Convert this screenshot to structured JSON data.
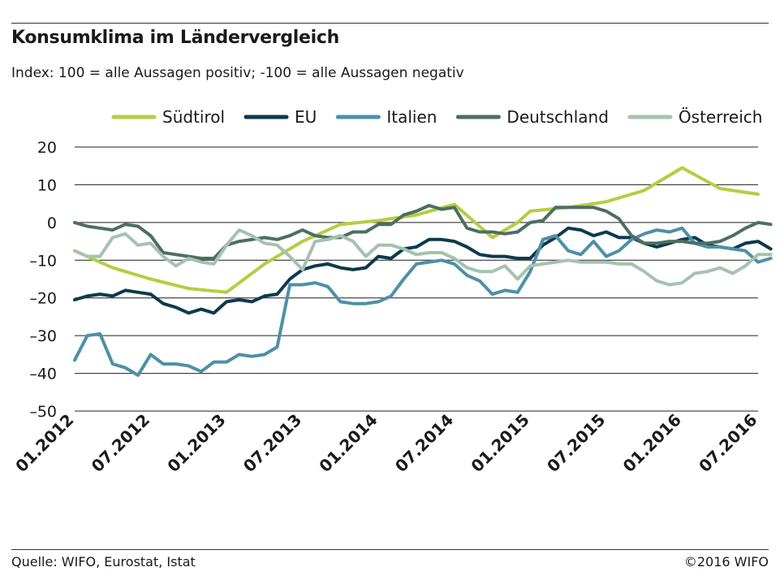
{
  "header": {
    "title": "Konsumklima im Ländervergleich",
    "subtitle": "Index: 100 = alle Aussagen positiv; -100 =  alle Aussagen negativ"
  },
  "footer": {
    "source": "Quelle: WIFO, Eurostat, Istat",
    "copyright": "©2016 WIFO"
  },
  "chart_data": {
    "type": "line",
    "title": "Konsumklima im Ländervergleich",
    "subtitle": "Index: 100 = alle Aussagen positiv; -100 =  alle Aussagen negativ",
    "xlabel": "",
    "ylabel": "",
    "ylim": [
      -50,
      20
    ],
    "yticks": [
      20,
      10,
      0,
      -10,
      -20,
      -30,
      -40,
      -50
    ],
    "ytick_labels": [
      "20",
      "10",
      "0",
      "–10",
      "–20",
      "–30",
      "–40",
      "–50"
    ],
    "xticks": [
      {
        "label": "01.2012",
        "index": 0
      },
      {
        "label": "07.2012",
        "index": 6
      },
      {
        "label": "01.2013",
        "index": 12
      },
      {
        "label": "07.2013",
        "index": 18
      },
      {
        "label": "01.2014",
        "index": 24
      },
      {
        "label": "07.2014",
        "index": 30
      },
      {
        "label": "01.2015",
        "index": 36
      },
      {
        "label": "07.2015",
        "index": 42
      },
      {
        "label": "01.2016",
        "index": 48
      },
      {
        "label": "07.2016",
        "index": 54
      }
    ],
    "x_start": "01.2012",
    "x_end": "07.2016",
    "grid": "horizontal",
    "legend": "top",
    "series": [
      {
        "name": "Südtirol",
        "color": "#b5cd42",
        "x": [
          0,
          3,
          6,
          9,
          12,
          15,
          18,
          21,
          24,
          27,
          30,
          33,
          35,
          36,
          39,
          42,
          45,
          48,
          51,
          54
        ],
        "values": [
          -7.5,
          -12,
          -15,
          -17.5,
          -18.5,
          -11,
          -5,
          -0.5,
          0.5,
          2,
          4.8,
          -4,
          0,
          3,
          4,
          5.5,
          8.5,
          14.5,
          9,
          7.5
        ]
      },
      {
        "name": "EU",
        "color": "#0c3a4c",
        "values": [
          -20.5,
          -19.5,
          -19,
          -19.5,
          -18,
          -18.5,
          -19,
          -21.5,
          -22.5,
          -24,
          -23,
          -24,
          -21,
          -20.5,
          -21,
          -19.5,
          -19,
          -15,
          -12.5,
          -11.5,
          -11,
          -12,
          -12.5,
          -12,
          -9,
          -9.5,
          -7,
          -6.5,
          -4.5,
          -4.5,
          -5,
          -6.5,
          -8.5,
          -9,
          -9,
          -9.5,
          -9.5,
          -6,
          -4,
          -1.5,
          -2,
          -3.5,
          -2.5,
          -4,
          -4,
          -5.5,
          -6.5,
          -5.5,
          -4.5,
          -4,
          -6,
          -6.5,
          -7,
          -5.5,
          -5,
          -7
        ]
      },
      {
        "name": "Italien",
        "color": "#4f8fa8",
        "values": [
          -36.5,
          -30,
          -29.5,
          -37.5,
          -38.5,
          -40.5,
          -35,
          -37.5,
          -37.5,
          -38,
          -39.5,
          -37,
          -37,
          -35,
          -35.5,
          -35,
          -33,
          -16.5,
          -16.5,
          -16,
          -17,
          -21,
          -21.5,
          -21.5,
          -21,
          -19.5,
          -15,
          -11,
          -10.5,
          -10,
          -11,
          -14,
          -15.5,
          -19,
          -18,
          -18.5,
          -13,
          -4.5,
          -3.5,
          -7.5,
          -8.5,
          -5,
          -9,
          -7.5,
          -4.5,
          -3,
          -2,
          -2.5,
          -1.5,
          -5.5,
          -6.5,
          -6.5,
          -7,
          -7.5,
          -10.5,
          -9.5
        ]
      },
      {
        "name": "Deutschland",
        "color": "#4d6e62",
        "values": [
          0,
          -1,
          -1.5,
          -2,
          -0.5,
          -1,
          -3.5,
          -8,
          -8.5,
          -9,
          -9.5,
          -9.5,
          -6,
          -5,
          -4.5,
          -4,
          -4.5,
          -3.5,
          -2,
          -3.5,
          -4,
          -4,
          -2.5,
          -2.5,
          -0.5,
          -0.5,
          2,
          3,
          4.5,
          3.5,
          4,
          -1.5,
          -2.5,
          -2.5,
          -3,
          -2.5,
          0,
          0.5,
          4,
          4,
          4,
          4,
          3,
          1,
          -3.5,
          -5.5,
          -5.5,
          -5,
          -5,
          -5.5,
          -5.5,
          -5,
          -3.5,
          -1.5,
          0,
          -0.5
        ]
      },
      {
        "name": "Österreich",
        "color": "#a5c2ae",
        "values": [
          -7.5,
          -9,
          -9,
          -4,
          -3,
          -6,
          -5.5,
          -9,
          -11.5,
          -9.5,
          -10.5,
          -11,
          -6,
          -2,
          -3.5,
          -5.5,
          -6,
          -9,
          -12.5,
          -5,
          -4.5,
          -3.5,
          -5,
          -9,
          -6,
          -6,
          -7,
          -8.5,
          -8,
          -8,
          -9.5,
          -12,
          -13,
          -13,
          -11.5,
          -15,
          -11.5,
          -11,
          -10.5,
          -10,
          -10.5,
          -10.5,
          -10.5,
          -11,
          -11,
          -13,
          -15.5,
          -16.5,
          -16,
          -13.5,
          -13,
          -12,
          -13.5,
          -11.5,
          -8.5,
          -8.5
        ]
      }
    ]
  }
}
